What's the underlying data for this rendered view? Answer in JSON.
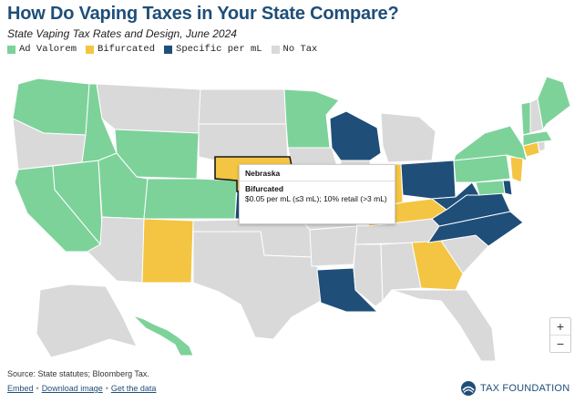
{
  "title": "How Do Vaping Taxes in Your State Compare?",
  "subtitle": "State Vaping Tax Rates and Design, June 2024",
  "colors": {
    "ad_valorem": "#7dd29a",
    "bifurcated": "#f4c542",
    "specific": "#1f4e79",
    "no_tax": "#d9d9d9",
    "title": "#1f4e79",
    "border": "#ffffff"
  },
  "legend": [
    {
      "key": "ad_valorem",
      "label": "Ad Valorem"
    },
    {
      "key": "bifurcated",
      "label": "Bifurcated"
    },
    {
      "key": "specific",
      "label": "Specific per mL"
    },
    {
      "key": "no_tax",
      "label": "No Tax"
    }
  ],
  "states": {
    "WA": "ad_valorem",
    "OR": "no_tax",
    "CA": "ad_valorem",
    "NV": "ad_valorem",
    "ID": "ad_valorem",
    "MT": "no_tax",
    "WY": "ad_valorem",
    "UT": "ad_valorem",
    "AZ": "no_tax",
    "CO": "ad_valorem",
    "NM": "bifurcated",
    "ND": "no_tax",
    "SD": "no_tax",
    "NE": "bifurcated",
    "KS": "specific",
    "OK": "no_tax",
    "TX": "no_tax",
    "MN": "ad_valorem",
    "IA": "no_tax",
    "MO": "no_tax",
    "AR": "no_tax",
    "LA": "specific",
    "WI": "specific",
    "IL": "no_tax",
    "MI": "no_tax",
    "IN": "bifurcated",
    "KY": "bifurcated",
    "TN": "no_tax",
    "MS": "no_tax",
    "AL": "no_tax",
    "GA": "bifurcated",
    "FL": "no_tax",
    "OH": "specific",
    "WV": "specific",
    "VA": "specific",
    "NC": "specific",
    "SC": "no_tax",
    "PA": "ad_valorem",
    "NY": "ad_valorem",
    "NJ": "bifurcated",
    "DE": "specific",
    "MD": "ad_valorem",
    "VT": "ad_valorem",
    "NH": "no_tax",
    "ME": "ad_valorem",
    "MA": "ad_valorem",
    "CT": "bifurcated",
    "RI": "no_tax",
    "AK": "no_tax",
    "HI": "ad_valorem"
  },
  "tooltip": {
    "state": "Nebraska",
    "category": "Bifurcated",
    "detail": "$0.05 per mL (≤3 mL); 10% retail (>3 mL)"
  },
  "zoom": {
    "in_label": "+",
    "out_label": "−"
  },
  "source": "Source: State statutes; Bloomberg Tax.",
  "links": {
    "embed": "Embed",
    "download": "Download image",
    "data": "Get the data"
  },
  "brand": "TAX FOUNDATION"
}
